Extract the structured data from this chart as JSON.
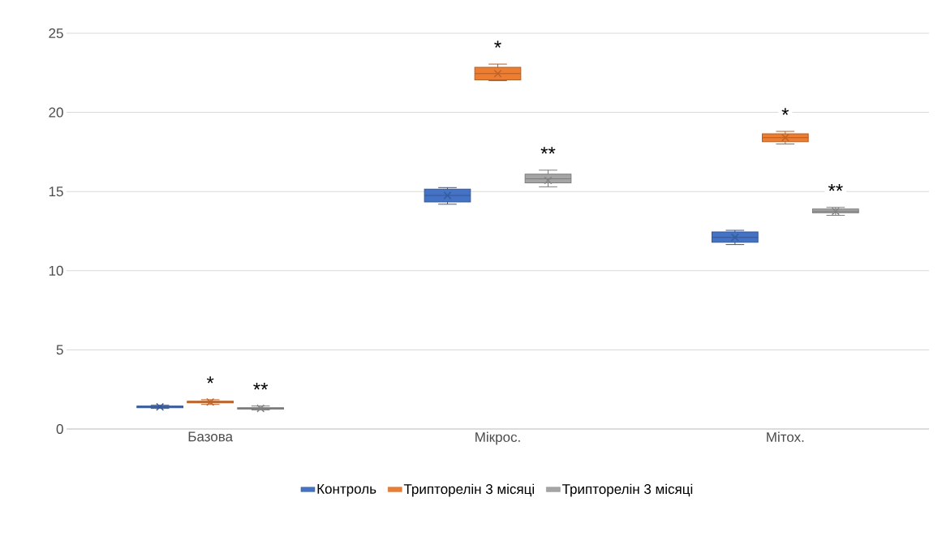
{
  "chart_data": {
    "type": "box",
    "categories": [
      "Базова",
      "Мікрос.",
      "Мітох."
    ],
    "series": [
      {
        "name": "Контроль",
        "color": "#4472c4",
        "boxes": [
          {
            "low": 1.3,
            "q1": 1.35,
            "median": 1.4,
            "q3": 1.45,
            "high": 1.5,
            "mean": 1.4
          },
          {
            "low": 14.2,
            "q1": 14.35,
            "median": 14.75,
            "q3": 15.15,
            "high": 15.25,
            "mean": 14.75
          },
          {
            "low": 11.65,
            "q1": 11.8,
            "median": 12.1,
            "q3": 12.45,
            "high": 12.55,
            "mean": 12.1
          }
        ]
      },
      {
        "name": "Трипторелін 3 місяці",
        "color": "#ed7d31",
        "boxes": [
          {
            "low": 1.55,
            "q1": 1.65,
            "median": 1.7,
            "q3": 1.75,
            "high": 1.85,
            "mean": 1.7
          },
          {
            "low": 22.0,
            "q1": 22.05,
            "median": 22.45,
            "q3": 22.85,
            "high": 23.05,
            "mean": 22.45
          },
          {
            "low": 18.0,
            "q1": 18.15,
            "median": 18.4,
            "q3": 18.65,
            "high": 18.8,
            "mean": 18.4
          }
        ]
      },
      {
        "name": "Трипторелін 3 місяці",
        "color": "#a5a5a5",
        "boxes": [
          {
            "low": 1.2,
            "q1": 1.25,
            "median": 1.3,
            "q3": 1.35,
            "high": 1.45,
            "mean": 1.3
          },
          {
            "low": 15.3,
            "q1": 15.55,
            "median": 15.8,
            "q3": 16.1,
            "high": 16.35,
            "mean": 15.7
          },
          {
            "low": 13.5,
            "q1": 13.65,
            "median": 13.75,
            "q3": 13.9,
            "high": 14.0,
            "mean": 13.75
          }
        ]
      }
    ],
    "ylim": [
      0,
      25
    ],
    "yticks": [
      0,
      5,
      10,
      15,
      20,
      25
    ],
    "grid": "y",
    "legend": "bottom",
    "annotations": [
      "*",
      "**",
      "*",
      "**",
      "*",
      "**"
    ]
  }
}
